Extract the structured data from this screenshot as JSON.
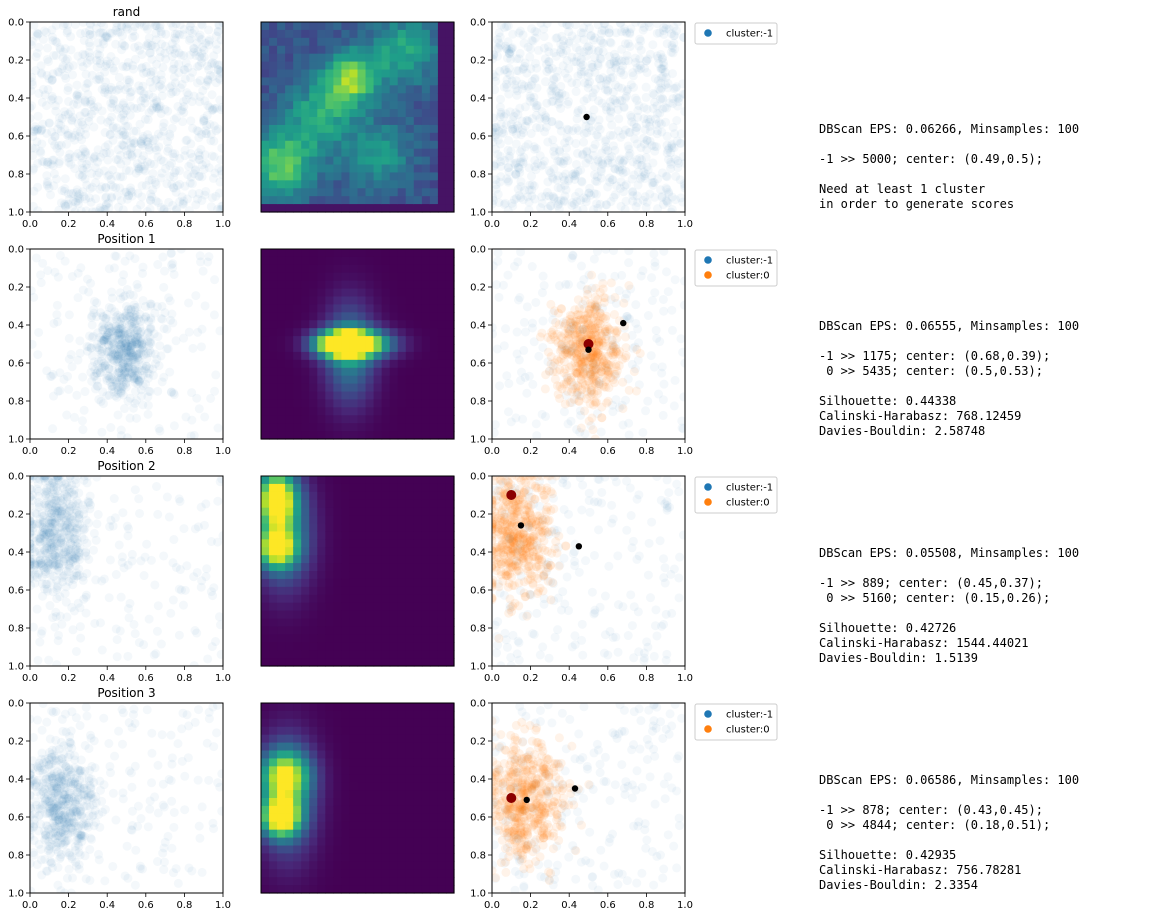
{
  "colors": {
    "cluster_minus1": "#1f77b4",
    "cluster_0": "#ff7f0e",
    "center_marker": "#000000",
    "true_position_marker": "#8b0000",
    "heatmap_colormap": "viridis",
    "text": "#000000"
  },
  "axis": {
    "x_ticks": [
      "0.0",
      "0.2",
      "0.4",
      "0.6",
      "0.8",
      "1.0"
    ],
    "y_ticks": [
      "0.0",
      "0.2",
      "0.4",
      "0.6",
      "0.8",
      "1.0"
    ],
    "xlim": [
      0,
      1
    ],
    "ylim": [
      1,
      0
    ],
    "y_inverted": true
  },
  "rows": [
    {
      "title": "rand",
      "legend": [
        "cluster:-1"
      ],
      "stats": [
        "DBScan EPS: 0.06266, Minsamples: 100",
        "",
        "-1 >> 5000; center: (0.49,0.5);",
        "",
        "Need at least 1 cluster",
        "in order to generate scores"
      ]
    },
    {
      "title": "Position 1",
      "legend": [
        "cluster:-1",
        "cluster:0"
      ],
      "stats": [
        "DBScan EPS: 0.06555, Minsamples: 100",
        "",
        "-1 >> 1175; center: (0.68,0.39);",
        " 0 >> 5435; center: (0.5,0.53);",
        "",
        "Silhouette: 0.44338",
        "Calinski-Harabasz: 768.12459",
        "Davies-Bouldin: 2.58748"
      ]
    },
    {
      "title": "Position 2",
      "legend": [
        "cluster:-1",
        "cluster:0"
      ],
      "stats": [
        "DBScan EPS: 0.05508, Minsamples: 100",
        "",
        "-1 >> 889; center: (0.45,0.37);",
        " 0 >> 5160; center: (0.15,0.26);",
        "",
        "Silhouette: 0.42726",
        "Calinski-Harabasz: 1544.44021",
        "Davies-Bouldin: 1.5139"
      ]
    },
    {
      "title": "Position 3",
      "legend": [
        "cluster:-1",
        "cluster:0"
      ],
      "stats": [
        "DBScan EPS: 0.06586, Minsamples: 100",
        "",
        "-1 >> 878; center: (0.43,0.45);",
        " 0 >> 4844; center: (0.18,0.51);",
        "",
        "Silhouette: 0.42935",
        "Calinski-Harabasz: 756.78281",
        "Davies-Bouldin: 2.3354"
      ]
    }
  ],
  "chart_data": [
    {
      "type": "scatter",
      "title": "rand",
      "xlim": [
        0,
        1
      ],
      "ylim": [
        1,
        0
      ],
      "distribution": "uniform",
      "series": [
        {
          "name": "cluster:-1",
          "count": 5000,
          "center": [
            0.49,
            0.5
          ]
        }
      ],
      "true_position": null,
      "heatmap_peaks": [
        {
          "x": 0.47,
          "y": 0.3,
          "sigma": 0.1,
          "w": 1.0
        },
        {
          "x": 0.1,
          "y": 0.75,
          "sigma": 0.12,
          "w": 0.85
        },
        {
          "x": 0.3,
          "y": 0.5,
          "sigma": 0.12,
          "w": 0.6
        },
        {
          "x": 0.75,
          "y": 0.15,
          "sigma": 0.12,
          "w": 0.6
        },
        {
          "x": 0.6,
          "y": 0.7,
          "sigma": 0.12,
          "w": 0.5
        }
      ]
    },
    {
      "type": "scatter",
      "title": "Position 1",
      "xlim": [
        0,
        1
      ],
      "ylim": [
        1,
        0
      ],
      "distribution": "cluster",
      "blob": {
        "x": 0.5,
        "y": 0.53,
        "sx": 0.09,
        "sy": 0.14
      },
      "series": [
        {
          "name": "cluster:-1",
          "count": 1175,
          "center": [
            0.68,
            0.39
          ]
        },
        {
          "name": "cluster:0",
          "count": 5435,
          "center": [
            0.5,
            0.53
          ]
        }
      ],
      "true_position": [
        0.5,
        0.5
      ],
      "heatmap_peaks": [
        {
          "x": 0.4,
          "y": 0.5,
          "sigma": 0.08,
          "sx": 0.09,
          "sy": 0.045,
          "w": 0.75
        },
        {
          "x": 0.5,
          "y": 0.5,
          "sigma": 0.08,
          "sx": 0.12,
          "sy": 0.05,
          "w": 1.0
        },
        {
          "x": 0.46,
          "y": 0.55,
          "sigma": 0.12,
          "sx": 0.09,
          "sy": 0.18,
          "w": 0.45
        }
      ]
    },
    {
      "type": "scatter",
      "title": "Position 2",
      "xlim": [
        0,
        1
      ],
      "ylim": [
        1,
        0
      ],
      "distribution": "cluster",
      "blob": {
        "x": 0.13,
        "y": 0.3,
        "sx": 0.09,
        "sy": 0.17
      },
      "series": [
        {
          "name": "cluster:-1",
          "count": 889,
          "center": [
            0.45,
            0.37
          ]
        },
        {
          "name": "cluster:0",
          "count": 5160,
          "center": [
            0.15,
            0.26
          ]
        }
      ],
      "true_position": [
        0.1,
        0.1
      ],
      "heatmap_peaks": [
        {
          "x": 0.08,
          "y": 0.12,
          "sigma": 0.08,
          "sx": 0.07,
          "sy": 0.1,
          "w": 1.0
        },
        {
          "x": 0.08,
          "y": 0.38,
          "sigma": 0.07,
          "w": 0.85
        },
        {
          "x": 0.12,
          "y": 0.3,
          "sigma": 0.12,
          "sx": 0.1,
          "sy": 0.2,
          "w": 0.45
        }
      ]
    },
    {
      "type": "scatter",
      "title": "Position 3",
      "xlim": [
        0,
        1
      ],
      "ylim": [
        1,
        0
      ],
      "distribution": "cluster",
      "blob": {
        "x": 0.17,
        "y": 0.52,
        "sx": 0.1,
        "sy": 0.17
      },
      "series": [
        {
          "name": "cluster:-1",
          "count": 878,
          "center": [
            0.43,
            0.45
          ]
        },
        {
          "name": "cluster:0",
          "count": 4844,
          "center": [
            0.18,
            0.51
          ]
        }
      ],
      "true_position": [
        0.1,
        0.5
      ],
      "heatmap_peaks": [
        {
          "x": 0.1,
          "y": 0.6,
          "sigma": 0.07,
          "w": 1.0
        },
        {
          "x": 0.12,
          "y": 0.38,
          "sigma": 0.09,
          "w": 0.75
        },
        {
          "x": 0.14,
          "y": 0.5,
          "sigma": 0.14,
          "sx": 0.1,
          "sy": 0.22,
          "w": 0.4
        }
      ]
    }
  ]
}
